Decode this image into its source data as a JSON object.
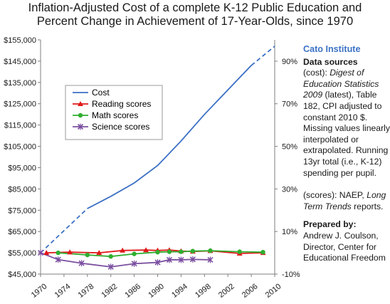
{
  "title_line1": "Inflation-Adjusted Cost of a complete K-12 Public Education and",
  "title_line2": "Percent Change in Achievement of 17-Year-Olds, since 1970",
  "sidebar": {
    "org": "Cato Institute",
    "sources_heading": "Data sources",
    "cost_prefix": "(cost): ",
    "cost_pub": "Digest of Education Statistics 2009",
    "cost_rest": " (latest), Table 182, CPI adjusted to constant 2010 $. Missing values linearly interpolated or extrapolated. Running 13yr total (i.e., K-12) spending per pupil.",
    "scores_prefix": "(scores): NAEP, ",
    "scores_pub": "Long Term Trends",
    "scores_rest": " reports.",
    "prepared_heading": "Prepared by:",
    "prepared_by": "Andrew J. Coulson, Director, Center for Educational Freedom"
  },
  "colors": {
    "cost": "#3a6fc4",
    "reading": "#e01818",
    "math": "#2fae2f",
    "science": "#7b4fa0",
    "axis": "#7f7f7f",
    "right_axis_labels": "#1a1a1a",
    "neg_label": "#cc0000"
  },
  "chart_data": {
    "type": "line",
    "title": "Inflation-Adjusted Cost of a complete K-12 Public Education and Percent Change in Achievement of 17-Year-Olds, since 1970",
    "x_ticks": [
      1970,
      1974,
      1978,
      1982,
      1986,
      1990,
      1994,
      1998,
      2002,
      2006,
      2010
    ],
    "x_range": [
      1970,
      2010
    ],
    "y_left": {
      "range": [
        45000,
        155000
      ],
      "ticks": [
        45000,
        55000,
        65000,
        75000,
        85000,
        95000,
        105000,
        115000,
        125000,
        135000,
        145000,
        155000
      ],
      "tick_labels": [
        "$45,000",
        "$55,000",
        "$65,000",
        "$75,000",
        "$85,000",
        "$95,000",
        "$105,000",
        "$115,000",
        "$125,000",
        "$135,000",
        "$145,000",
        "$155,000"
      ]
    },
    "y_right": {
      "range": [
        -10,
        100
      ],
      "ticks": [
        -10,
        10,
        30,
        50,
        70,
        90
      ],
      "tick_labels": [
        "-10%",
        "10%",
        "30%",
        "50%",
        "70%",
        "90%"
      ]
    },
    "legend": [
      "Cost",
      "Reading scores",
      "Math scores",
      "Science scores"
    ],
    "grid": false,
    "series": [
      {
        "name": "Cost",
        "axis": "left",
        "marker": "none",
        "segments": [
          {
            "style": "dashed",
            "x": [
              1970,
              1978
            ],
            "y": [
              55000,
              75800
            ]
          },
          {
            "style": "solid",
            "x": [
              1978,
              1982,
              1986,
              1990,
              1994,
              1998,
              2002,
              2006
            ],
            "y": [
              75800,
              81500,
              87800,
              96000,
              107500,
              120000,
              131500,
              143000
            ]
          },
          {
            "style": "dashed",
            "x": [
              2006,
              2010
            ],
            "y": [
              143000,
              152000
            ]
          }
        ]
      },
      {
        "name": "Reading scores",
        "axis": "right",
        "marker": "triangle",
        "x": [
          1971,
          1975,
          1980,
          1984,
          1988,
          1990,
          1992,
          1994,
          1996,
          1999,
          2004,
          2008
        ],
        "y": [
          0,
          0.3,
          0,
          1.1,
          1.3,
          1.1,
          1.3,
          0.8,
          0.6,
          0.9,
          -0.3,
          0
        ]
      },
      {
        "name": "Math scores",
        "axis": "right",
        "marker": "circle",
        "x": [
          1973,
          1978,
          1982,
          1986,
          1990,
          1992,
          1994,
          1996,
          1999,
          2004,
          2008
        ],
        "y": [
          0,
          -1,
          -1.7,
          -0.5,
          0.3,
          0.5,
          0.5,
          0.8,
          1,
          0.5,
          0.3
        ]
      },
      {
        "name": "Science scores",
        "axis": "right",
        "marker": "x",
        "x": [
          1970,
          1973,
          1977,
          1982,
          1986,
          1990,
          1992,
          1994,
          1996,
          1999
        ],
        "y": [
          0,
          -3.2,
          -4.9,
          -6.6,
          -5.1,
          -4.5,
          -3.3,
          -3.3,
          -3.1,
          -3.3
        ]
      }
    ]
  }
}
